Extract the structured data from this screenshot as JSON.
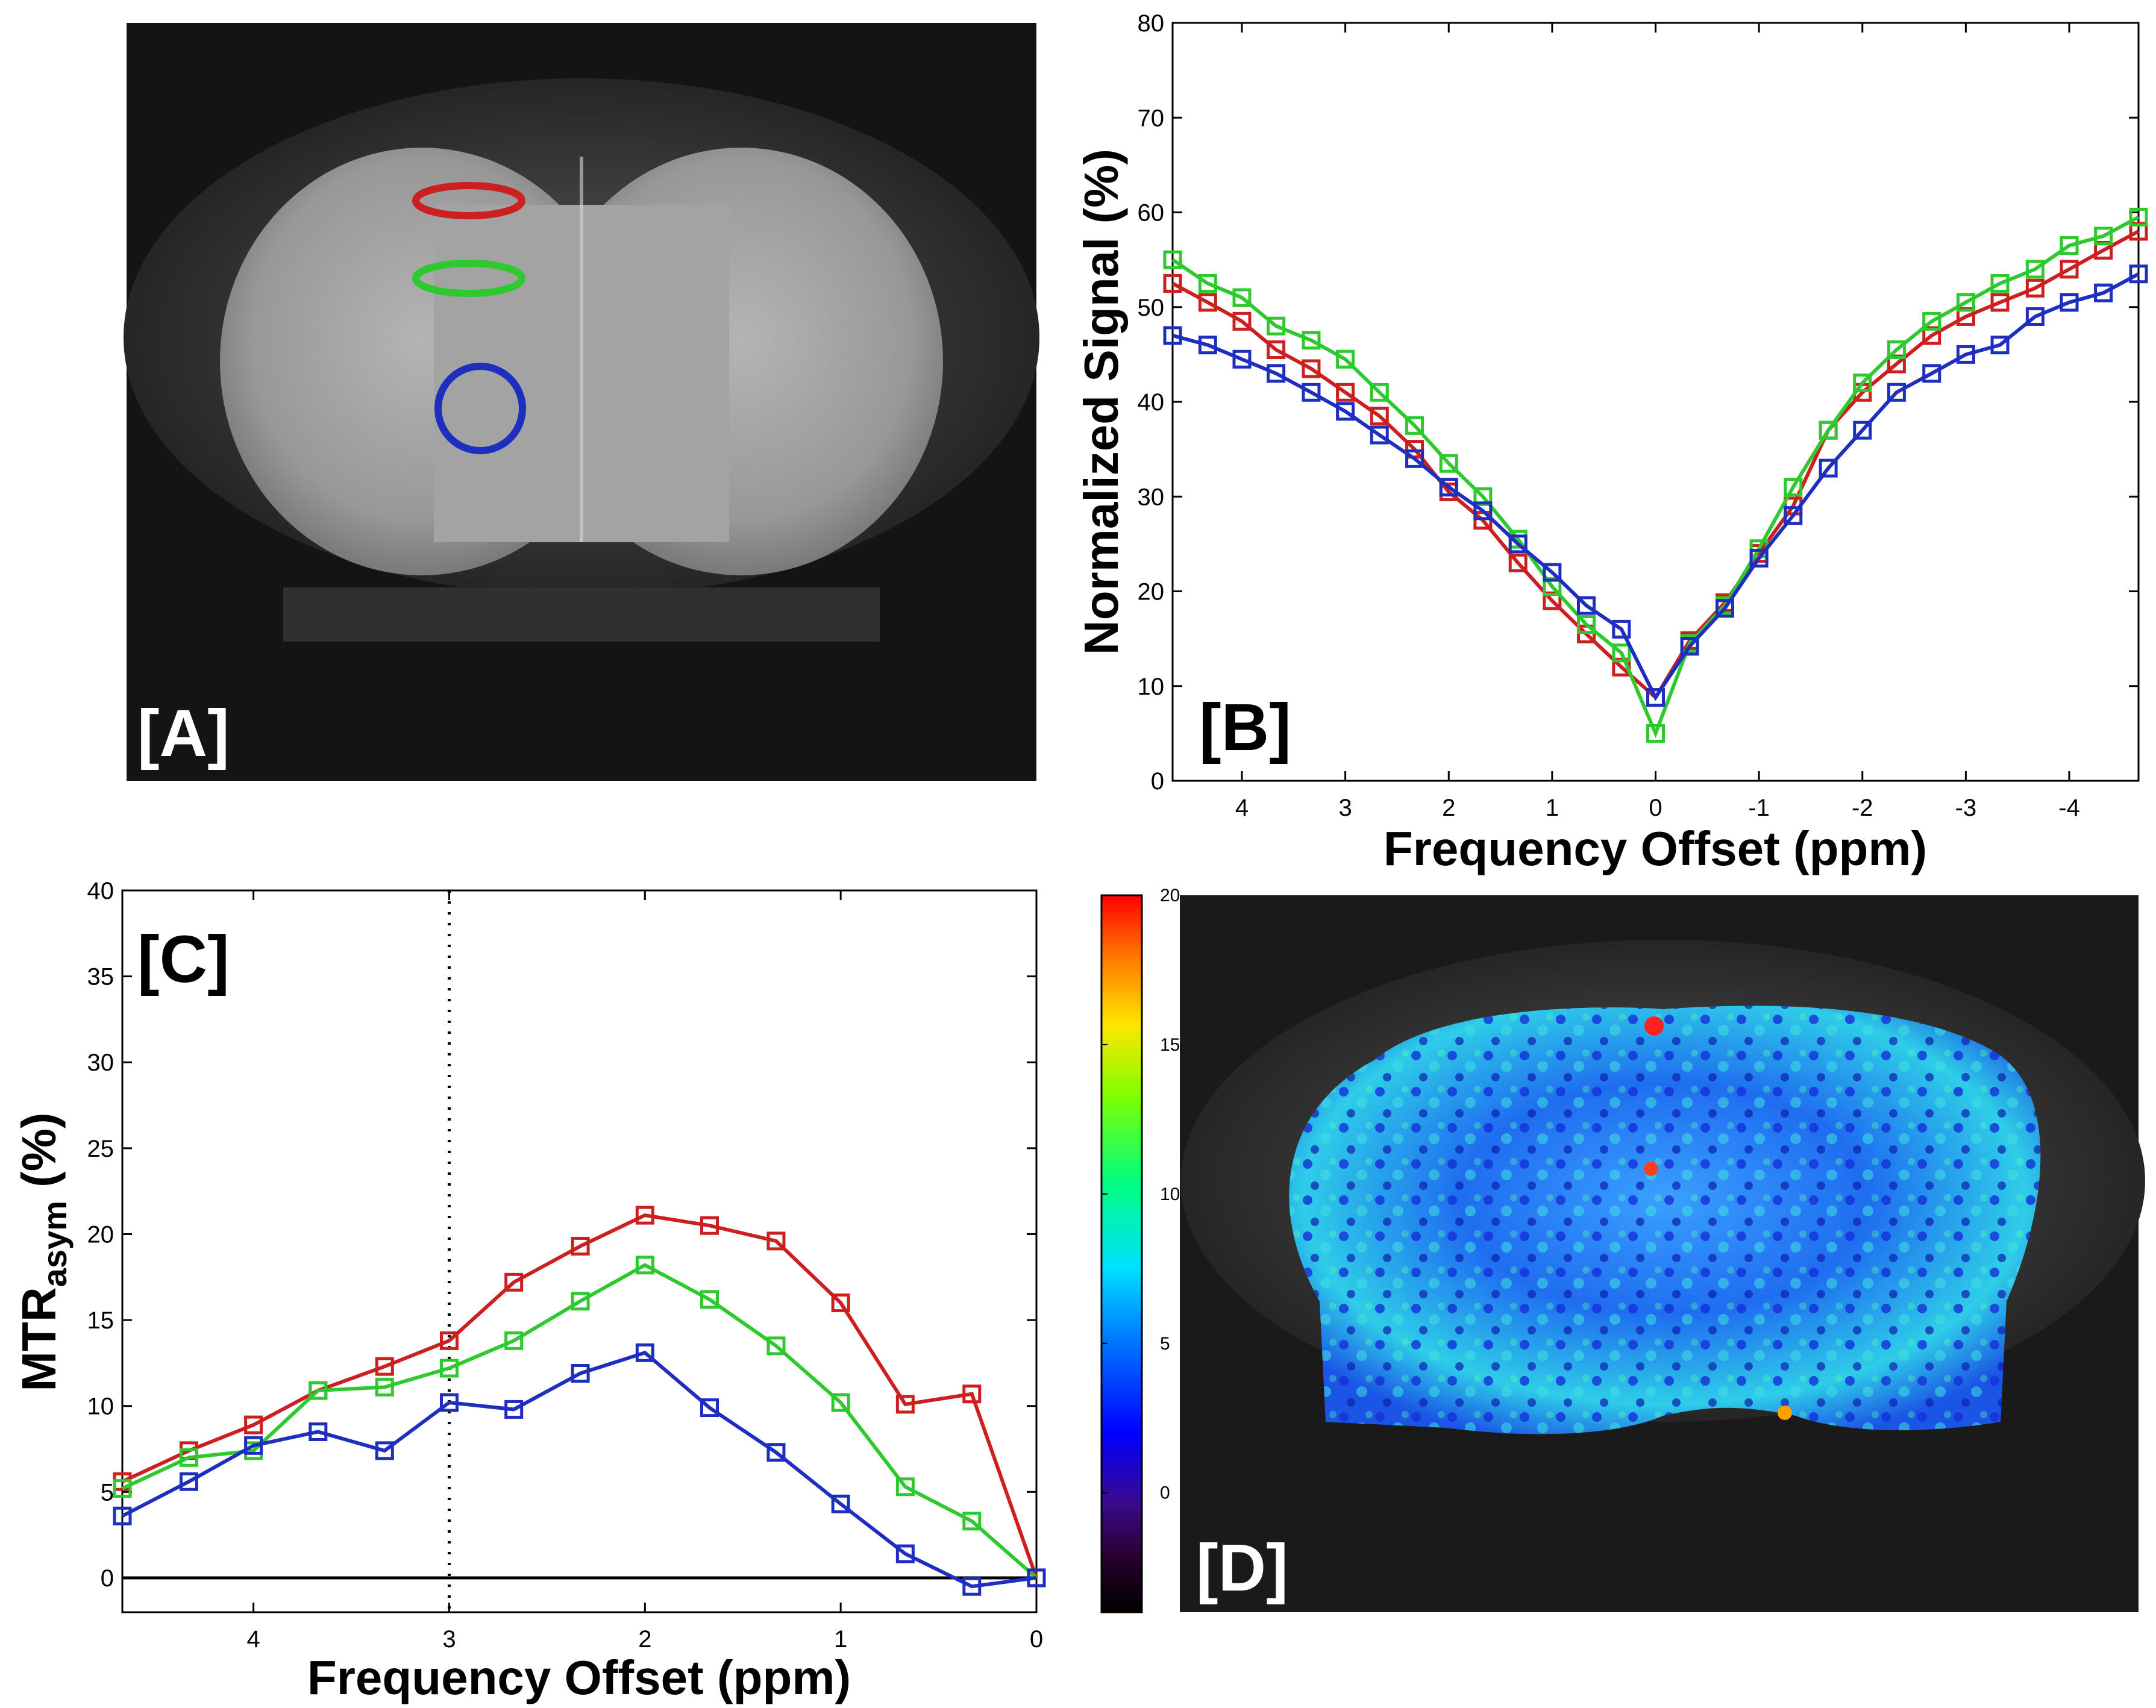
{
  "panels": {
    "A": {
      "label": "[A]"
    },
    "B": {
      "label": "[B]"
    },
    "C": {
      "label": "[C]"
    },
    "D": {
      "label": "[D]"
    }
  },
  "roi_colors": {
    "red": "#cc1f1f",
    "green": "#2ec92e",
    "blue": "#1e2fc0"
  },
  "colorbar": {
    "ticks": [
      "20",
      "15",
      "10",
      "5",
      "0"
    ],
    "range": [
      -4,
      20
    ]
  },
  "chart_data": [
    {
      "panel": "B",
      "type": "line",
      "xlabel": "Frequency Offset (ppm)",
      "ylabel": "Normalized Signal (%)",
      "xlim": [
        4.67,
        -4.67
      ],
      "ylim": [
        0,
        80
      ],
      "xticks": [
        "4",
        "3",
        "2",
        "1",
        "0",
        "-1",
        "-2",
        "-3",
        "-4"
      ],
      "yticks": [
        "0",
        "10",
        "20",
        "30",
        "40",
        "50",
        "60",
        "70",
        "80"
      ],
      "x": [
        4.67,
        4.33,
        4.0,
        3.67,
        3.33,
        3.0,
        2.67,
        2.33,
        2.0,
        1.67,
        1.33,
        1.0,
        0.67,
        0.33,
        0,
        -0.33,
        -0.67,
        -1.0,
        -1.33,
        -1.67,
        -2.0,
        -2.33,
        -2.67,
        -3.0,
        -3.33,
        -3.67,
        -4.0,
        -4.33,
        -4.67
      ],
      "series": [
        {
          "color": "#cc1f1f",
          "values": [
            52.5,
            50.5,
            48.5,
            45.5,
            43.5,
            41,
            38.5,
            35,
            30.5,
            27.5,
            23,
            19,
            15.5,
            12,
            8.8,
            14.8,
            18.8,
            24,
            29,
            37,
            41,
            44,
            47,
            49,
            50.5,
            52,
            54,
            56,
            58
          ]
        },
        {
          "color": "#2ec92e",
          "values": [
            55,
            52.5,
            51,
            48,
            46.5,
            44.5,
            41,
            37.5,
            33.5,
            30,
            25.5,
            20.5,
            16.5,
            13.5,
            5,
            14.5,
            18.5,
            24.5,
            31,
            37,
            42,
            45.5,
            48.5,
            50.5,
            52.5,
            54,
            56.5,
            57.5,
            59.5
          ]
        },
        {
          "color": "#1e2fc0",
          "values": [
            47,
            46,
            44.5,
            43,
            41,
            39,
            36.5,
            34,
            31,
            28.5,
            25,
            22,
            18.5,
            16,
            8.8,
            14.2,
            18.2,
            23.5,
            28,
            33,
            37,
            41,
            43,
            45,
            46,
            49,
            50.5,
            51.5,
            53.5
          ]
        }
      ]
    },
    {
      "panel": "C",
      "type": "line",
      "xlabel": "Frequency Offset (ppm)",
      "ylabel_main": "MTR",
      "ylabel_sub": "asym",
      "ylabel_unit": " (%)",
      "xlim": [
        4.67,
        0
      ],
      "ylim": [
        -2,
        40
      ],
      "xticks": [
        "4",
        "3",
        "2",
        "1",
        "0"
      ],
      "yticks": [
        "0",
        "5",
        "10",
        "15",
        "20",
        "25",
        "30",
        "35",
        "40"
      ],
      "dotted_line_x": 3,
      "x": [
        4.67,
        4.33,
        4.0,
        3.67,
        3.33,
        3.0,
        2.67,
        2.33,
        2.0,
        1.67,
        1.33,
        1.0,
        0.67,
        0.33,
        0
      ],
      "series": [
        {
          "color": "#cc1f1f",
          "values": [
            5.6,
            7.4,
            8.9,
            10.9,
            12.3,
            13.8,
            17.2,
            19.3,
            21.1,
            20.5,
            19.6,
            16.0,
            10.1,
            10.7,
            0
          ]
        },
        {
          "color": "#2ec92e",
          "values": [
            5.2,
            7.0,
            7.4,
            10.9,
            11.1,
            12.2,
            13.8,
            16.1,
            18.2,
            16.2,
            13.5,
            10.2,
            5.3,
            3.3,
            0
          ]
        },
        {
          "color": "#1e2fc0",
          "values": [
            3.6,
            5.6,
            7.7,
            8.5,
            7.4,
            10.2,
            9.8,
            11.9,
            13.1,
            9.9,
            7.3,
            4.3,
            1.4,
            -0.5,
            0
          ]
        }
      ]
    }
  ]
}
